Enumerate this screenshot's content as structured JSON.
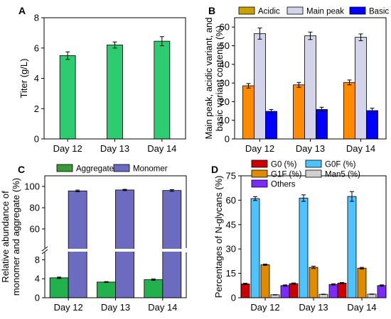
{
  "chart_data": [
    {
      "panel": "A",
      "type": "bar",
      "categories": [
        "Day 12",
        "Day 13",
        "Day 14"
      ],
      "series": [
        {
          "values": [
            5.5,
            6.2,
            6.45
          ],
          "errors": [
            0.25,
            0.2,
            0.3
          ],
          "color": "#2ecc71"
        }
      ],
      "xlabel": "",
      "ylabel": "Titer (g/L)",
      "ylim": [
        0,
        8
      ],
      "yticks": [
        0,
        2,
        4,
        6,
        8
      ]
    },
    {
      "panel": "B",
      "type": "bar",
      "categories": [
        "Day 12",
        "Day 13",
        "Day 14"
      ],
      "series": [
        {
          "name": "Acidic",
          "values": [
            28.5,
            29,
            30.3
          ],
          "errors": [
            1.2,
            1.3,
            1.3
          ],
          "color": "#ff8c00"
        },
        {
          "name": "Main peak",
          "values": [
            56.5,
            55.3,
            54.5
          ],
          "errors": [
            3,
            2,
            1.8
          ],
          "color": "#d3d3ea"
        },
        {
          "name": "Basic",
          "values": [
            14.8,
            15.8,
            15.2
          ],
          "errors": [
            1,
            1.2,
            1.3
          ],
          "color": "#0000ff"
        }
      ],
      "legend_colors": [
        "#c8a000",
        "#d3d3ea",
        "#0000ff"
      ],
      "xlabel": "",
      "ylabel": [
        "Main peak, acidic variant, and",
        "basic variant contents (%)"
      ],
      "ylim": [
        0,
        65
      ],
      "yticks": [
        0,
        10,
        20,
        30,
        40,
        50,
        60
      ]
    },
    {
      "panel": "C",
      "type": "bar",
      "categories": [
        "Day 12",
        "Day 13",
        "Day 14"
      ],
      "series": [
        {
          "name": "Aggregate",
          "values": [
            4.2,
            3.3,
            3.8
          ],
          "errors": [
            0.15,
            0.1,
            0.15
          ],
          "color": "#22b14c"
        },
        {
          "name": "Monomer",
          "values": [
            95.8,
            96.7,
            96.2
          ],
          "errors": [
            0.8,
            0.6,
            0.8
          ],
          "color": "#6b6bbf"
        }
      ],
      "legend_colors": [
        "#3a9a3a",
        "#6b6bbf"
      ],
      "xlabel": "",
      "ylabel": [
        "Relative abundance of",
        "monomer and aggregate (%)"
      ],
      "ylim_lower": [
        0,
        10
      ],
      "ylim_upper": [
        40,
        110
      ],
      "axis_break": true,
      "yticks_lower": [
        0,
        4,
        8
      ],
      "yticks_upper": [
        60,
        80,
        100
      ]
    },
    {
      "panel": "D",
      "type": "bar",
      "categories": [
        "Day 12",
        "Day 13",
        "Day 14"
      ],
      "series": [
        {
          "name": "G0 (%)",
          "values": [
            8.5,
            8.7,
            9
          ],
          "errors": [
            0.4,
            0.4,
            0.4
          ],
          "color": "#cc0000"
        },
        {
          "name": "G0F (%)",
          "values": [
            61,
            61.3,
            62.3
          ],
          "errors": [
            1.2,
            2,
            3
          ],
          "color": "#4dc3ff"
        },
        {
          "name": "G1F (%)",
          "values": [
            20.3,
            18.7,
            18.2
          ],
          "errors": [
            0.4,
            0.7,
            0.5
          ],
          "color": "#e08a00"
        },
        {
          "name": "Man5 (%)",
          "values": [
            1.8,
            2.1,
            2.2
          ],
          "errors": [
            0.1,
            0.1,
            0.1
          ],
          "color": "#d0d0d0"
        },
        {
          "name": "Others",
          "values": [
            7.5,
            8.2,
            7.5
          ],
          "errors": [
            0.4,
            0.4,
            0.4
          ],
          "color": "#7b2bff"
        }
      ],
      "legend_colors": [
        "#cc0000",
        "#4dc3ff",
        "#e08a00",
        "#d0d0d0",
        "#7b2bff"
      ],
      "xlabel": "",
      "ylabel": "Percentages of N-glycans (%)",
      "ylim": [
        0,
        75
      ],
      "yticks": [
        0,
        15,
        30,
        45,
        60,
        75
      ]
    }
  ]
}
